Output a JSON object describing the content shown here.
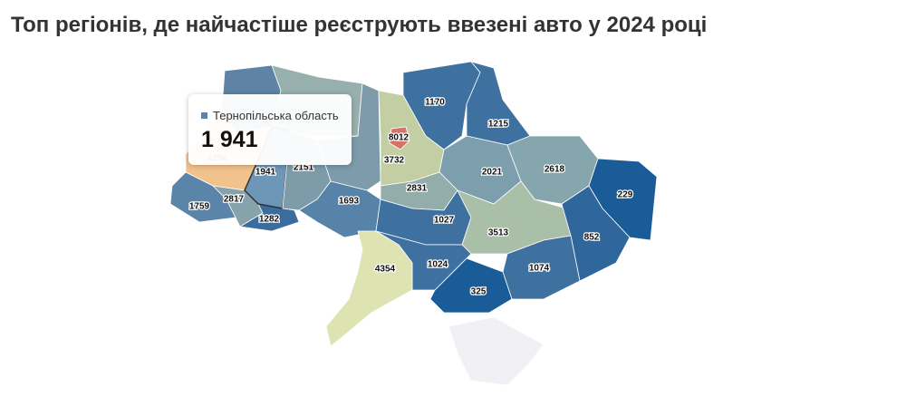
{
  "chart_data": {
    "type": "choropleth",
    "title": "Топ регіонів, де найчастіше реєструють ввезені авто у 2024 році",
    "values": [
      null,
      null,
      null,
      6256,
      1759,
      2817,
      1282,
      1941,
      2151,
      1693,
      3732,
      8012,
      1170,
      1215,
      2021,
      2618,
      229,
      2831,
      1027,
      3513,
      852,
      1074,
      325,
      1024,
      4354,
      null
    ],
    "colors": [
      "#5e83a5",
      "#98b0ad",
      "#7d9bab",
      "#f2c28c",
      "#5a84a8",
      "#86a2ab",
      "#3a6d9e",
      "#6e96b6",
      "#7c9caa",
      "#5883a8",
      "#c3cfa2",
      "#d9706a",
      "#3f71a0",
      "#3f71a0",
      "#7d9fad",
      "#86a6ad",
      "#1a5c98",
      "#92adaa",
      "#3f71a0",
      "#a9bfa8",
      "#2f669c",
      "#3f71a0",
      "#1a5c98",
      "#3f71a0",
      "#dde4b2",
      "#f1f1f5"
    ],
    "tooltip": {
      "label": "Тернопільська область",
      "value": 1941,
      "value_label": "1 941",
      "color": "#5e83a5"
    }
  }
}
